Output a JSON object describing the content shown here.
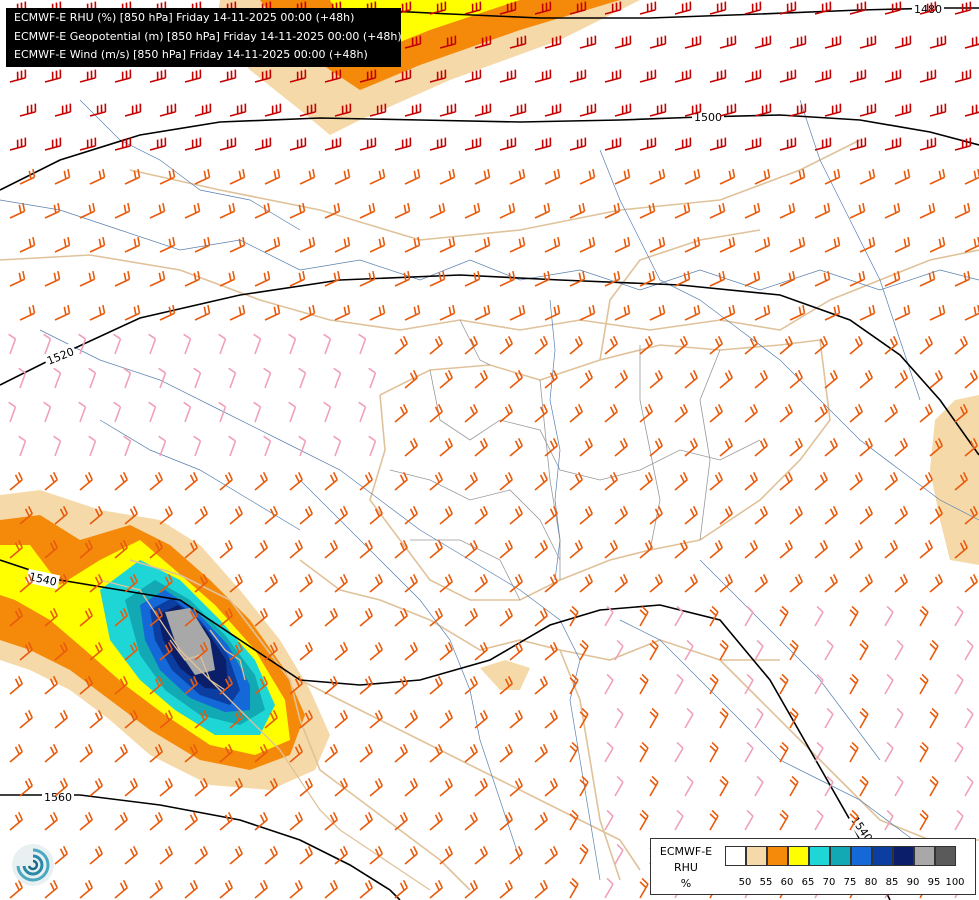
{
  "header_lines": [
    "ECMWF-E RHU (%) [850 hPa] Friday 14-11-2025 00:00 (+48h)",
    "ECMWF-E Geopotential (m) [850 hPa] Friday 14-11-2025 00:00 (+48h)",
    "ECMWF-E Wind (m/s) [850 hPa] Friday 14-11-2025 00:00 (+48h)"
  ],
  "contours": {
    "labels": [
      "1480",
      "1500",
      "1520",
      "1540",
      "1560",
      "1540"
    ]
  },
  "legend": {
    "title_lines": [
      "ECMWF-E",
      "RHU",
      "%"
    ],
    "ticks": [
      "50",
      "55",
      "60",
      "65",
      "70",
      "75",
      "80",
      "85",
      "90",
      "95",
      "100"
    ],
    "colors": [
      "#ffffff",
      "#f6d9a8",
      "#f58a0a",
      "#ffff00",
      "#1fd6d6",
      "#12a8b4",
      "#1468d8",
      "#0b3ea0",
      "#0a1e6a",
      "#a8a8a8",
      "#5a5a5a"
    ]
  },
  "colors": {
    "contour": "#000000",
    "border": "#e0c29a",
    "river": "#5a80b0",
    "country": "#888888",
    "barb_strong": "#c40000",
    "barb_medium": "#e85a0c",
    "barb_light": "#f0a0b8"
  },
  "logo": "ecmwf-logo-icon"
}
